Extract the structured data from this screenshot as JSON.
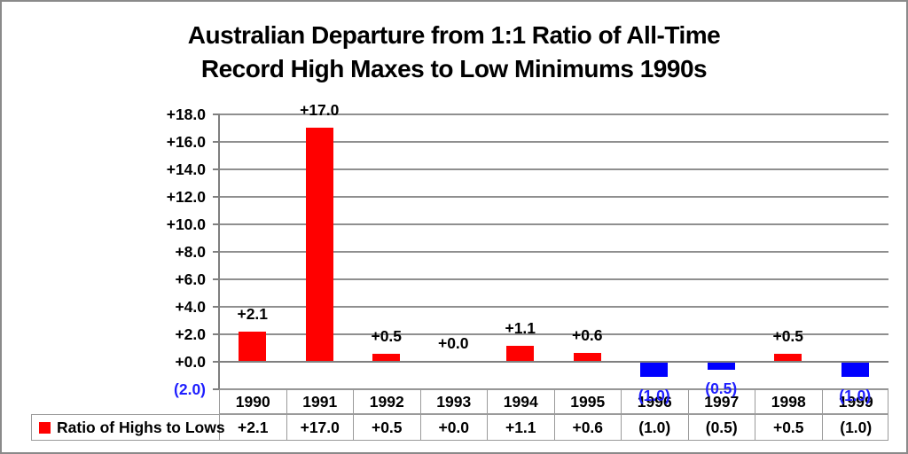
{
  "title": {
    "line1": "Australian Departure from 1:1 Ratio of All-Time",
    "line2": "Record High Maxes to Low Minimums 1990s"
  },
  "legend": {
    "label": "Ratio of Highs to Lows",
    "swatch_color": "#ff0000",
    "position": "bottom-left-table"
  },
  "colors": {
    "bar_positive": "#ff0000",
    "bar_negative": "#0000ff",
    "data_label_positive": "#000000",
    "data_label_negative": "#1f1fff",
    "gridline": "#8f8f8f",
    "axis": "#7f7f7f",
    "table_border": "#9a9a9a",
    "frame_border": "#8a8a8a",
    "title_text": "#000000"
  },
  "y_axis": {
    "min": -2,
    "max": 18,
    "step": 2,
    "tick_labels": [
      "+18.0",
      "+16.0",
      "+14.0",
      "+12.0",
      "+10.0",
      "+8.0",
      "+6.0",
      "+4.0",
      "+2.0",
      "+0.0",
      "(2.0)"
    ],
    "tick_values": [
      18,
      16,
      14,
      12,
      10,
      8,
      6,
      4,
      2,
      0,
      -2
    ],
    "negative_tick_label": "(2.0)"
  },
  "chart_data": {
    "type": "bar",
    "title": "Australian Departure from 1:1 Ratio of All-Time Record High Maxes to Low Minimums 1990s",
    "xlabel": "",
    "ylabel": "",
    "ylim": [
      -2,
      18
    ],
    "y_step": 2,
    "grid": true,
    "legend_position": "bottom",
    "categories": [
      "1990",
      "1991",
      "1992",
      "1993",
      "1994",
      "1995",
      "1996",
      "1997",
      "1998",
      "1999"
    ],
    "series": [
      {
        "name": "Ratio of Highs to Lows",
        "values": [
          2.1,
          17.0,
          0.5,
          0.0,
          1.1,
          0.6,
          -1.0,
          -0.5,
          0.5,
          -1.0
        ],
        "data_labels": [
          "+2.1",
          "+17.0",
          "+0.5",
          "+0.0",
          "+1.1",
          "+0.6",
          "(1.0)",
          "(0.5)",
          "+0.5",
          "(1.0)"
        ],
        "table_values": [
          "+2.1",
          "+17.0",
          "+0.5",
          "+0.0",
          "+1.1",
          "+0.6",
          "(1.0)",
          "(0.5)",
          "+0.5",
          "(1.0)"
        ]
      }
    ]
  }
}
